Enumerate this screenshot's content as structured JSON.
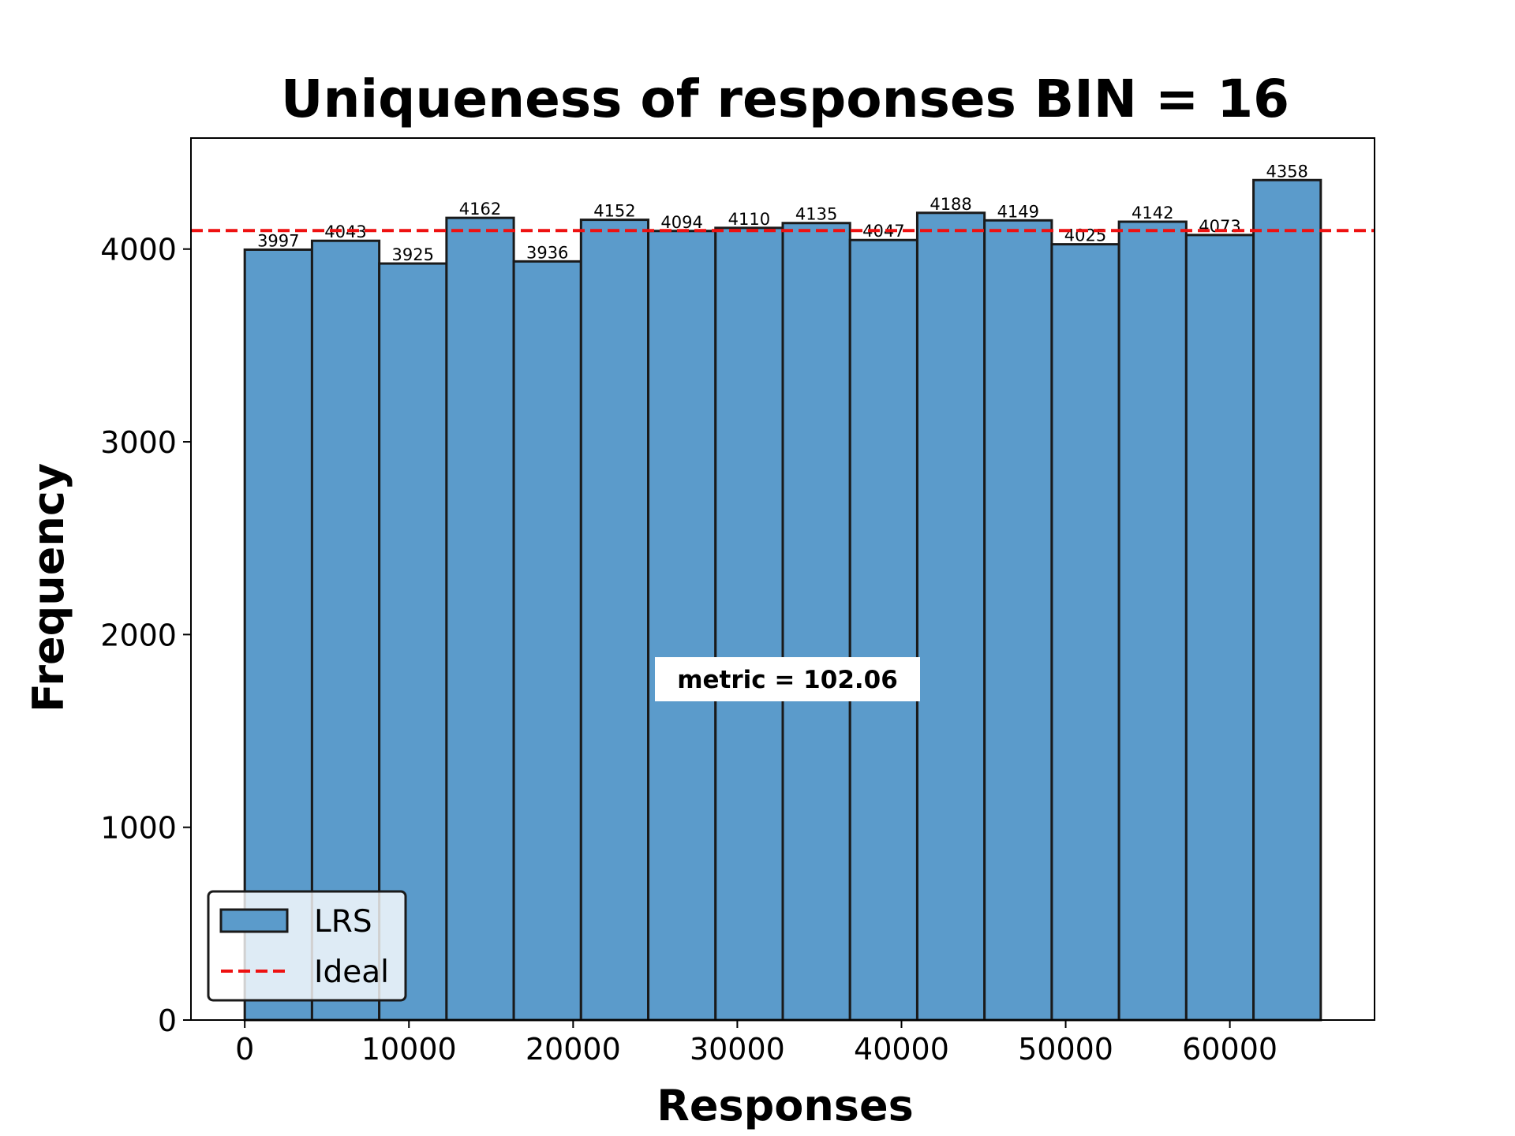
{
  "chart_data": {
    "type": "bar",
    "title": "Uniqueness of responses BIN = 16",
    "xlabel": "Responses",
    "ylabel": "Frequency",
    "bin_edges": [
      0,
      4096,
      8192,
      12288,
      16384,
      20480,
      24576,
      28672,
      32768,
      36864,
      40960,
      45056,
      49152,
      53248,
      57344,
      61440,
      65536
    ],
    "series": [
      {
        "name": "LRS",
        "values": [
          3997,
          4043,
          3925,
          4162,
          3936,
          4152,
          4094,
          4110,
          4135,
          4047,
          4188,
          4149,
          4025,
          4142,
          4073,
          4358
        ]
      }
    ],
    "bar_labels": [
      "3997",
      "4043",
      "3925",
      "4162",
      "3936",
      "4152",
      "4094",
      "4110",
      "4135",
      "4047",
      "4188",
      "4149",
      "4025",
      "4142",
      "4073",
      "4358"
    ],
    "reference_line": {
      "name": "Ideal",
      "value": 4096,
      "style": "dashed",
      "color": "#ee1111"
    },
    "annotation": "metric  = 102.06",
    "xlim": [
      -3277,
      68813
    ],
    "ylim": [
      0,
      4576
    ],
    "xticks": [
      0,
      10000,
      20000,
      30000,
      40000,
      50000,
      60000
    ],
    "xtick_labels": [
      "0",
      "10000",
      "20000",
      "30000",
      "40000",
      "50000",
      "60000"
    ],
    "yticks": [
      0,
      1000,
      2000,
      3000,
      4000
    ],
    "ytick_labels": [
      "0",
      "1000",
      "2000",
      "3000",
      "4000"
    ],
    "legend": {
      "placement": "lower-left",
      "entries": [
        {
          "label": "LRS",
          "kind": "bar"
        },
        {
          "label": "Ideal",
          "kind": "dashed-line"
        }
      ]
    },
    "colors": {
      "bar": "#5b9bcb",
      "bar_edge": "#1a1a1a",
      "ideal": "#ee1111"
    },
    "grid": false
  }
}
